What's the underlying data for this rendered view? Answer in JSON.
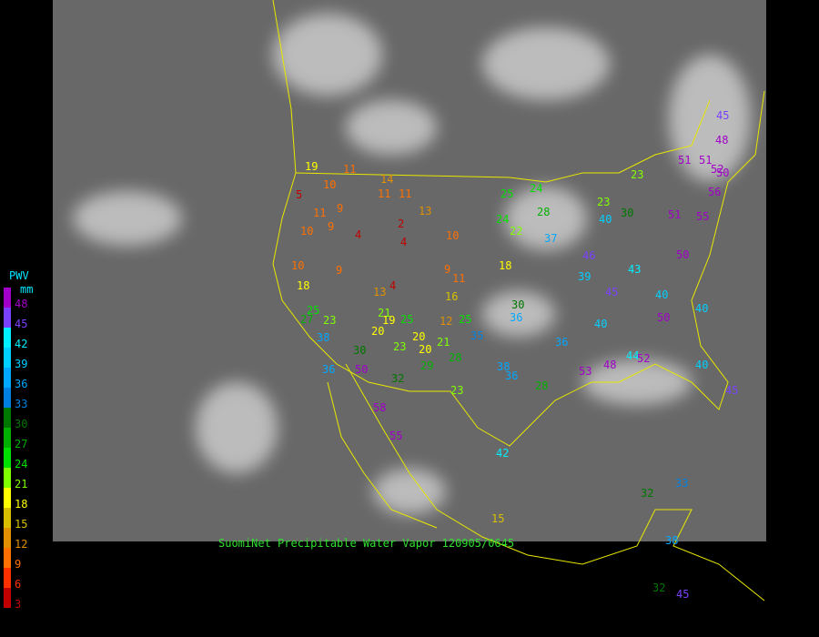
{
  "legend": {
    "title": "PWV",
    "unit": "mm",
    "levels": [
      48,
      45,
      42,
      39,
      36,
      33,
      30,
      27,
      24,
      21,
      18,
      15,
      12,
      9,
      6,
      3
    ],
    "colors": [
      "#a000c8",
      "#7a40ff",
      "#00f0ff",
      "#00d0ff",
      "#00a8ff",
      "#0080e0",
      "#007800",
      "#00b000",
      "#00e000",
      "#80ff00",
      "#ffff00",
      "#d8c000",
      "#e09000",
      "#ff7000",
      "#ff3000",
      "#c00000"
    ]
  },
  "caption": "SuomiNet Precipitable Water Vapor 120905/0645",
  "stations": [
    19,
    11,
    10,
    5,
    14,
    11,
    11,
    13,
    11,
    9,
    10,
    9,
    4,
    2,
    4,
    10,
    10,
    9,
    13,
    4,
    9,
    11,
    16,
    18,
    18,
    25,
    27,
    23,
    21,
    19,
    25,
    20,
    12,
    25,
    20,
    21,
    20,
    23,
    29,
    28,
    23,
    35,
    38,
    36,
    28,
    36,
    30,
    36,
    25,
    24,
    28,
    24,
    22,
    37,
    46,
    39,
    45,
    43,
    40,
    50,
    40,
    44,
    52,
    40,
    51,
    51,
    52,
    50,
    56,
    51,
    55,
    50,
    48,
    45,
    30,
    23,
    23,
    40,
    42,
    58,
    55,
    32,
    33,
    15,
    38,
    32,
    45,
    50,
    32,
    36,
    38,
    30,
    40,
    45,
    48,
    53
  ]
}
